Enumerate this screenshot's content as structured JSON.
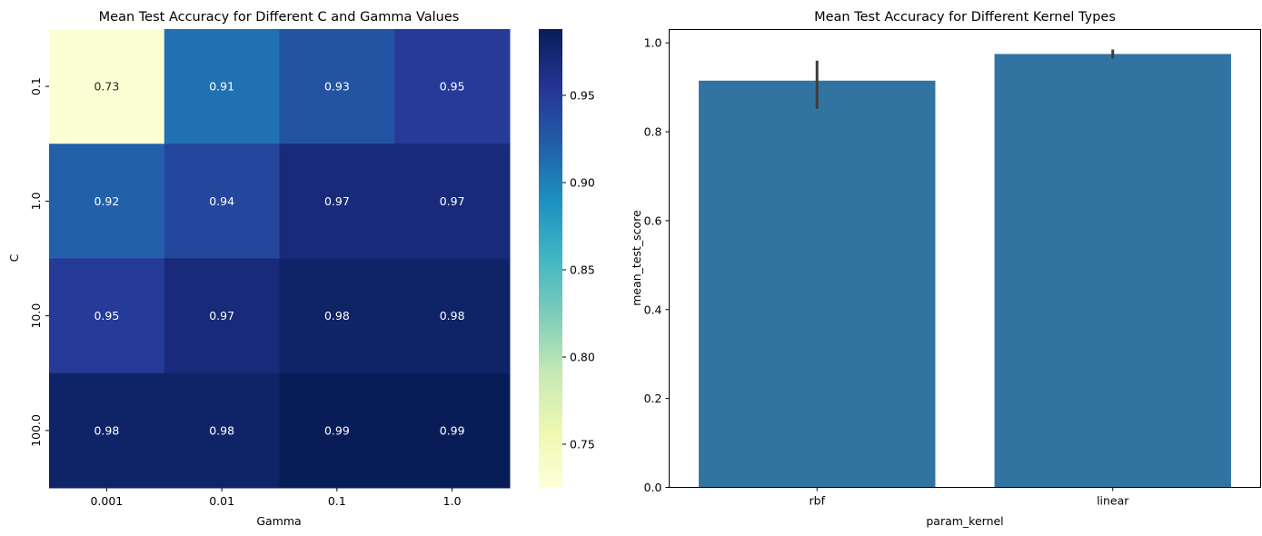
{
  "chart_data": [
    {
      "type": "heatmap",
      "title": "Mean Test Accuracy for Different C and Gamma Values",
      "xlabel": "Gamma",
      "ylabel": "C",
      "x_categories": [
        "0.001",
        "0.01",
        "0.1",
        "1.0"
      ],
      "y_categories": [
        "0.1",
        "1.0",
        "10.0",
        "100.0"
      ],
      "values": [
        [
          0.73,
          0.91,
          0.93,
          0.95
        ],
        [
          0.92,
          0.94,
          0.97,
          0.97
        ],
        [
          0.95,
          0.97,
          0.98,
          0.98
        ],
        [
          0.98,
          0.98,
          0.99,
          0.99
        ]
      ],
      "colormap": "YlGnBu",
      "colorbar": {
        "vmin": 0.725,
        "vmax": 0.988,
        "ticks": [
          "0.75",
          "0.80",
          "0.85",
          "0.90",
          "0.95"
        ]
      },
      "annotation_color": "#ffffff",
      "low_annotation_color": "#262626"
    },
    {
      "type": "bar",
      "title": "Mean Test Accuracy for Different Kernel Types",
      "xlabel": "param_kernel",
      "ylabel": "mean_test_score",
      "categories": [
        "rbf",
        "linear"
      ],
      "values": [
        0.915,
        0.975
      ],
      "error_bars": [
        {
          "low": 0.852,
          "high": 0.96
        },
        {
          "low": 0.965,
          "high": 0.985
        }
      ],
      "ylim": [
        0,
        1.03
      ],
      "yticks": [
        "0.0",
        "0.2",
        "0.4",
        "0.6",
        "0.8",
        "1.0"
      ],
      "bar_color": "#3274a1",
      "error_color": "#3d3d3d",
      "grid": false
    }
  ]
}
